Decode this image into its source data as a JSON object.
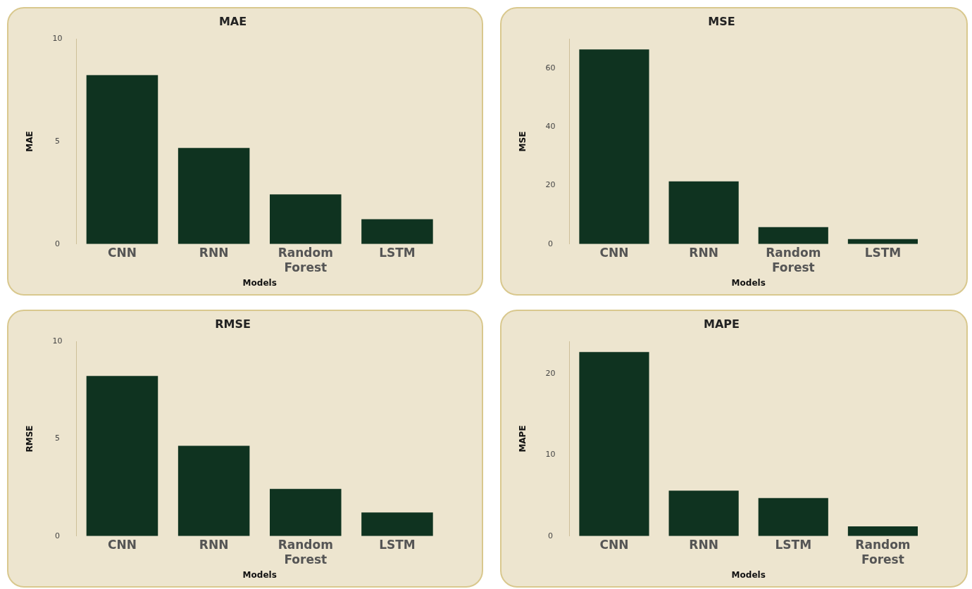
{
  "chart_data": [
    {
      "type": "bar",
      "title": "MAE",
      "xlabel": "Models",
      "ylabel": "MAE",
      "categories": [
        "CNN",
        "RNN",
        "Random Forest",
        "LSTM"
      ],
      "values": [
        8.23,
        4.68,
        2.42,
        1.21
      ],
      "color": "#0f3320",
      "ylim": [
        0,
        10
      ],
      "yticks": [
        0,
        5,
        10
      ],
      "grid": false,
      "legend": false
    },
    {
      "type": "bar",
      "title": "MSE",
      "xlabel": "Models",
      "ylabel": "MSE",
      "categories": [
        "CNN",
        "RNN",
        "Random Forest",
        "LSTM"
      ],
      "values": [
        66.4,
        21.4,
        5.8,
        1.7
      ],
      "color": "#0f3320",
      "ylim": [
        0,
        70
      ],
      "yticks": [
        0,
        20,
        40,
        60
      ],
      "grid": false,
      "legend": false
    },
    {
      "type": "bar",
      "title": "RMSE",
      "xlabel": "Models",
      "ylabel": "RMSE",
      "categories": [
        "CNN",
        "RNN",
        "Random Forest",
        "LSTM"
      ],
      "values": [
        8.23,
        4.64,
        2.42,
        1.21
      ],
      "color": "#0f3320",
      "ylim": [
        0,
        10
      ],
      "yticks": [
        0,
        5,
        10
      ],
      "grid": false,
      "legend": false
    },
    {
      "type": "bar",
      "title": "MAPE",
      "xlabel": "Models",
      "ylabel": "MAPE",
      "categories": [
        "CNN",
        "RNN",
        "LSTM",
        "Random Forest"
      ],
      "values": [
        22.7,
        5.6,
        4.7,
        1.2
      ],
      "color": "#0f3320",
      "ylim": [
        0,
        24
      ],
      "yticks": [
        0,
        10,
        20
      ],
      "grid": false,
      "legend": false
    }
  ]
}
